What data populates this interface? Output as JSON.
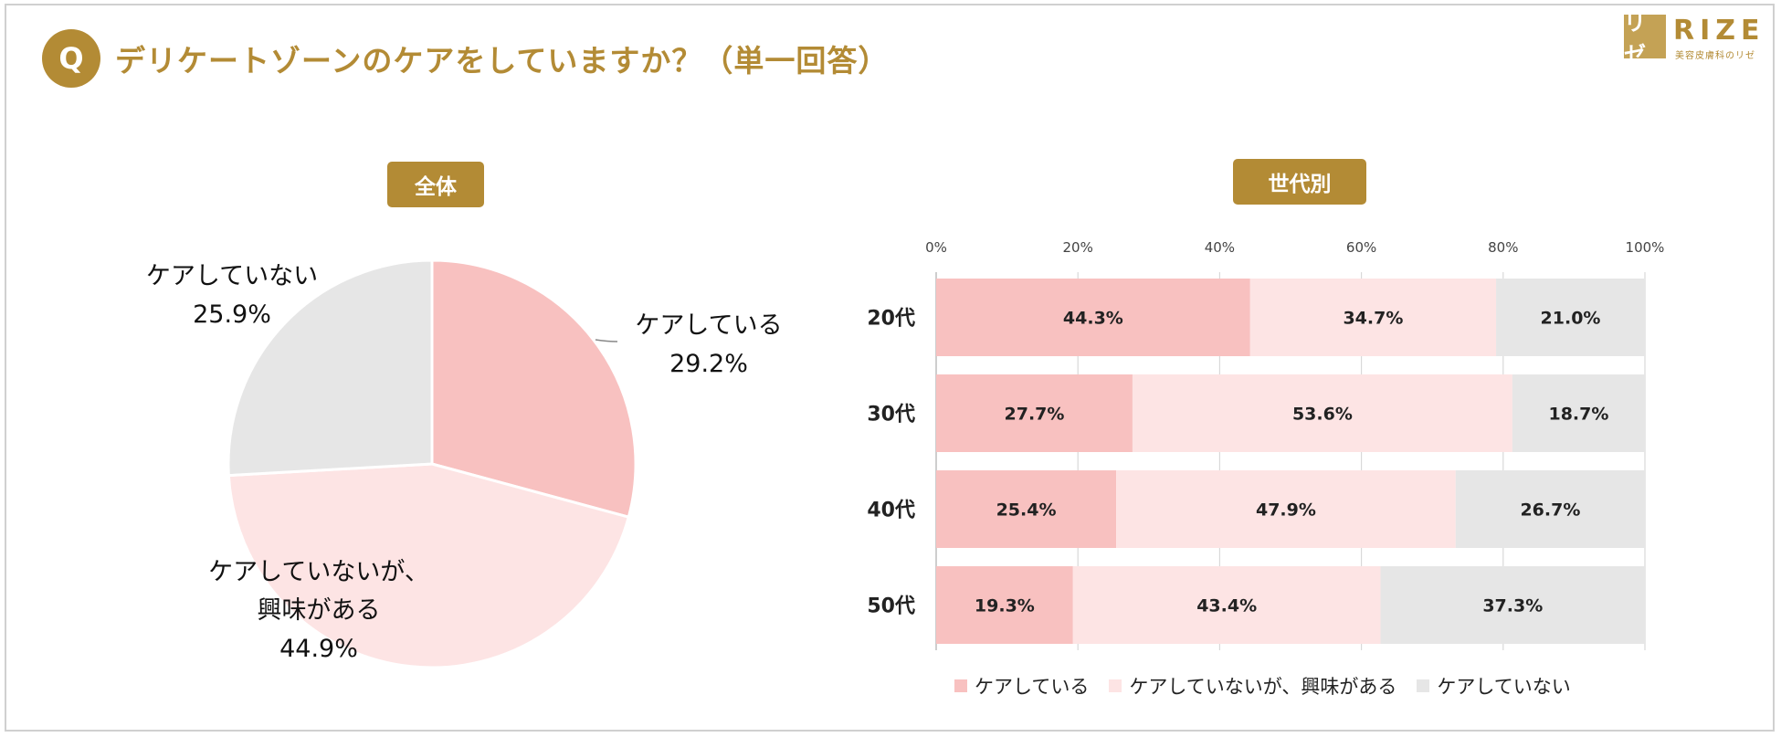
{
  "header": {
    "q_badge": "Q",
    "title": "デリケートゾーンのケアをしていますか？（単一回答）"
  },
  "logo": {
    "mark": "リゼ",
    "name": "RIZE",
    "sub": "美容皮膚科のリゼ"
  },
  "sections": {
    "overall": "全体",
    "by_generation": "世代別"
  },
  "colors": {
    "gold": "#b38b35",
    "care": "#f8c1c0",
    "interested": "#fde4e4",
    "no_care": "#e6e6e6"
  },
  "chart_data": [
    {
      "type": "pie",
      "title": "全体",
      "slices": [
        {
          "label": "ケアしている",
          "value": 29.2,
          "value_label": "29.2%",
          "color": "#f8c1c0"
        },
        {
          "label": "ケアしていないが、興味がある",
          "value": 44.9,
          "value_label": "44.9%",
          "color": "#fde4e4"
        },
        {
          "label": "ケアしていない",
          "value": 25.9,
          "value_label": "25.9%",
          "color": "#e6e6e6"
        }
      ],
      "slice_label_lines": [
        [
          "ケアしている"
        ],
        [
          "ケアしていないが、",
          "興味がある"
        ],
        [
          "ケアしていない"
        ]
      ]
    },
    {
      "type": "bar",
      "orientation": "horizontal",
      "stacked": "percent",
      "title": "世代別",
      "categories": [
        "20代",
        "30代",
        "40代",
        "50代"
      ],
      "series": [
        {
          "name": "ケアしている",
          "values": [
            44.3,
            27.7,
            25.4,
            19.3
          ],
          "labels": [
            "44.3%",
            "27.7%",
            "25.4%",
            "19.3%"
          ],
          "color": "#f8c1c0"
        },
        {
          "name": "ケアしていないが、興味がある",
          "values": [
            34.7,
            53.6,
            47.9,
            43.4
          ],
          "labels": [
            "34.7%",
            "53.6%",
            "47.9%",
            "43.4%"
          ],
          "color": "#fde4e4"
        },
        {
          "name": "ケアしていない",
          "values": [
            21.0,
            18.7,
            26.7,
            37.3
          ],
          "labels": [
            "21.0%",
            "18.7%",
            "26.7%",
            "37.3%"
          ],
          "color": "#e6e6e6"
        }
      ],
      "xlim": [
        0,
        100
      ],
      "xticks": [
        0,
        20,
        40,
        60,
        80,
        100
      ],
      "xtick_labels": [
        "0%",
        "20%",
        "40%",
        "60%",
        "80%",
        "100%"
      ],
      "grid": true,
      "legend": "bottom"
    }
  ]
}
